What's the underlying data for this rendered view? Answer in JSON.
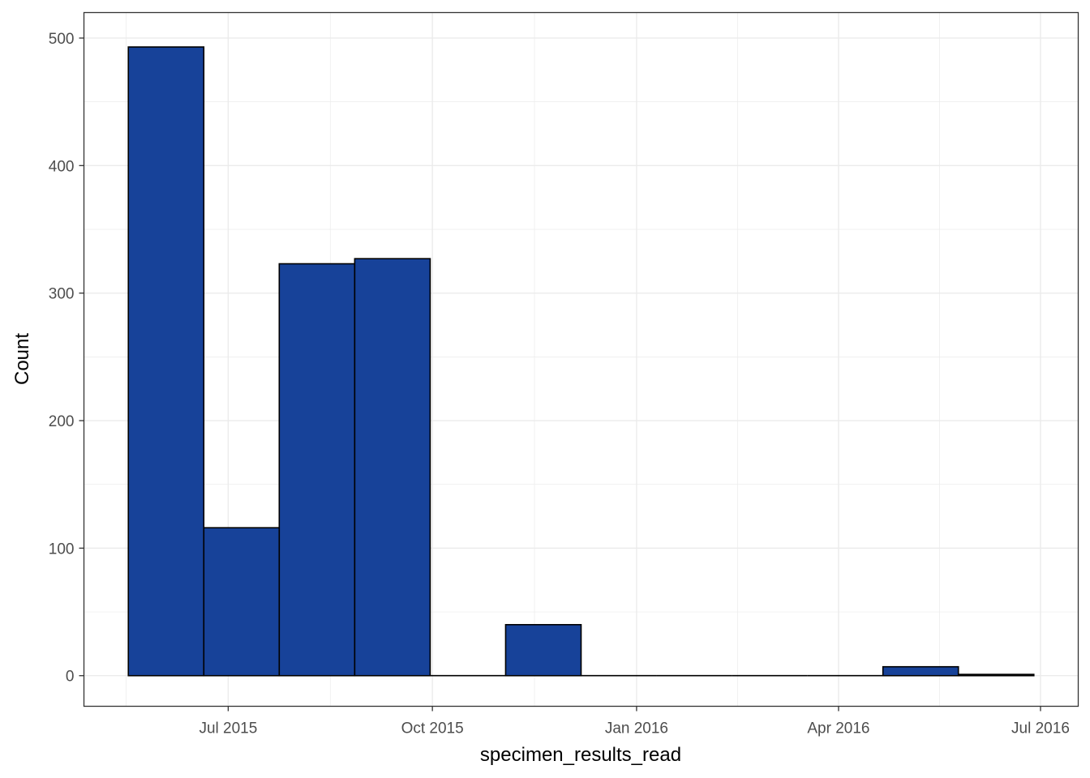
{
  "chart_data": {
    "type": "bar",
    "xlabel": "specimen_results_read",
    "ylabel": "Count",
    "x_axis": {
      "type": "date",
      "range": [
        "2015-04-27",
        "2016-07-18"
      ],
      "ticks": [
        {
          "date": "2015-07-01",
          "label": "Jul 2015"
        },
        {
          "date": "2015-10-01",
          "label": "Oct 2015"
        },
        {
          "date": "2016-01-01",
          "label": "Jan 2016"
        },
        {
          "date": "2016-04-01",
          "label": "Apr 2016"
        },
        {
          "date": "2016-07-01",
          "label": "Jul 2016"
        }
      ]
    },
    "y_axis": {
      "range": [
        -24,
        520
      ],
      "ticks": [
        0,
        100,
        200,
        300,
        400,
        500
      ]
    },
    "grid": true,
    "bins": [
      {
        "start": "2015-05-17",
        "end": "2015-06-20",
        "value": 493
      },
      {
        "start": "2015-06-20",
        "end": "2015-07-24",
        "value": 116
      },
      {
        "start": "2015-07-24",
        "end": "2015-08-27",
        "value": 323
      },
      {
        "start": "2015-08-27",
        "end": "2015-09-30",
        "value": 327
      },
      {
        "start": "2015-09-30",
        "end": "2015-11-03",
        "value": 0
      },
      {
        "start": "2015-11-03",
        "end": "2015-12-07",
        "value": 40
      },
      {
        "start": "2015-12-07",
        "end": "2016-01-10",
        "value": 0
      },
      {
        "start": "2016-01-10",
        "end": "2016-02-13",
        "value": 0
      },
      {
        "start": "2016-02-13",
        "end": "2016-03-18",
        "value": 0
      },
      {
        "start": "2016-03-18",
        "end": "2016-04-21",
        "value": 0
      },
      {
        "start": "2016-04-21",
        "end": "2016-05-25",
        "value": 7
      },
      {
        "start": "2016-05-25",
        "end": "2016-06-28",
        "value": 1
      }
    ],
    "colors": {
      "bar_fill": "#174299",
      "bar_stroke": "#000000",
      "grid": "#ebebeb",
      "panel_border": "#333333"
    }
  }
}
